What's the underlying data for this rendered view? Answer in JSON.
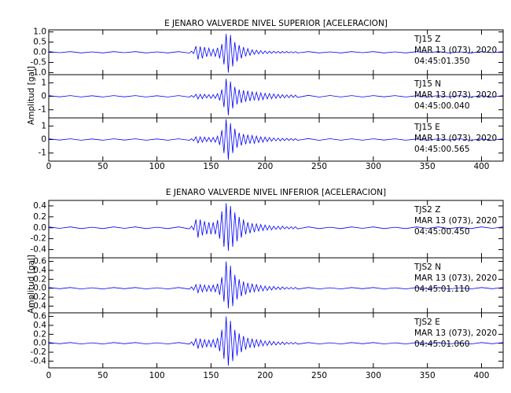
{
  "chart_data": [
    {
      "type": "line",
      "title": "E JENARO VALVERDE NIVEL SUPERIOR [ACELERACION]",
      "y_label": "Amplitud [gal]",
      "color": "#0000ff",
      "xlim": [
        0,
        420
      ],
      "xticks": [
        0,
        50,
        100,
        150,
        200,
        250,
        300,
        350,
        400
      ],
      "x": [
        0,
        10,
        20,
        30,
        40,
        50,
        60,
        70,
        80,
        90,
        100,
        110,
        120,
        130,
        132,
        134,
        136,
        138,
        140,
        142,
        144,
        146,
        148,
        150,
        152,
        154,
        156,
        158,
        160,
        162,
        164,
        166,
        168,
        170,
        172,
        174,
        176,
        178,
        180,
        182,
        184,
        186,
        188,
        190,
        192,
        194,
        196,
        198,
        200,
        202,
        204,
        206,
        208,
        210,
        212,
        214,
        216,
        218,
        220,
        222,
        224,
        226,
        228,
        230,
        240,
        250,
        260,
        270,
        280,
        290,
        300,
        310,
        320,
        330,
        340,
        350,
        360,
        370,
        380,
        390,
        400,
        410,
        420
      ],
      "panels": [
        {
          "annotations": [
            "TJ15   Z",
            "MAR 13 (073), 2020",
            "04:45:01.350"
          ],
          "ylim": [
            -1.1,
            1.1
          ],
          "yticks": [
            {
              "value": 1,
              "label": "1.0"
            },
            0.5,
            {
              "value": 0,
              "label": "0.0"
            },
            -0.5,
            {
              "value": -1,
              "label": "-1.0"
            }
          ],
          "values": [
            0.03,
            -0.02,
            0.03,
            -0.03,
            0.02,
            -0.03,
            0.03,
            -0.02,
            0.03,
            -0.03,
            0.02,
            -0.03,
            0.03,
            -0.04,
            0.05,
            -0.06,
            0.3,
            -0.35,
            0.28,
            -0.3,
            0.25,
            -0.22,
            0.2,
            -0.18,
            0.15,
            -0.2,
            0.22,
            -0.3,
            0.4,
            -0.6,
            0.9,
            -1.0,
            0.85,
            -0.7,
            0.5,
            -0.45,
            0.35,
            -0.3,
            0.25,
            -0.2,
            0.18,
            -0.15,
            0.12,
            -0.1,
            0.1,
            -0.08,
            0.08,
            -0.07,
            0.06,
            -0.06,
            0.05,
            -0.05,
            0.05,
            -0.04,
            0.04,
            -0.04,
            0.04,
            -0.03,
            0.04,
            -0.03,
            0.03,
            -0.03,
            0.03,
            -0.03,
            0.03,
            -0.03,
            0.02,
            -0.03,
            0.03,
            -0.02,
            0.03,
            -0.03,
            0.02,
            -0.03,
            0.03,
            -0.02,
            0.03,
            -0.03,
            0.02,
            -0.03,
            0.03,
            -0.02,
            0.03
          ]
        },
        {
          "annotations": [
            "TJ15   N",
            "MAR 13 (073), 2020",
            "04:45:00.040"
          ],
          "ylim": [
            -1.6,
            1.6
          ],
          "yticks": [
            1,
            0,
            -1
          ],
          "values": [
            0.05,
            -0.04,
            0.05,
            -0.05,
            0.04,
            -0.05,
            0.05,
            -0.04,
            0.05,
            -0.05,
            0.04,
            -0.05,
            0.05,
            -0.06,
            0.06,
            -0.08,
            0.15,
            -0.2,
            0.15,
            -0.18,
            0.15,
            -0.12,
            0.12,
            -0.15,
            0.12,
            -0.15,
            0.2,
            -0.3,
            0.5,
            -0.8,
            1.3,
            -1.4,
            1.1,
            -0.9,
            0.7,
            -0.6,
            0.5,
            -0.5,
            0.45,
            -0.4,
            0.4,
            -0.35,
            0.35,
            -0.3,
            0.3,
            -0.3,
            0.25,
            -0.25,
            0.22,
            -0.2,
            0.2,
            -0.18,
            0.18,
            -0.15,
            0.15,
            -0.13,
            0.12,
            -0.12,
            0.1,
            -0.1,
            0.1,
            -0.08,
            0.08,
            -0.08,
            0.07,
            -0.06,
            0.06,
            -0.05,
            0.05,
            -0.05,
            0.05,
            -0.04,
            0.05,
            -0.05,
            0.04,
            -0.05,
            0.05,
            -0.04,
            0.05,
            -0.05,
            0.04,
            -0.05,
            0.05
          ]
        },
        {
          "annotations": [
            "TJ15   E",
            "MAR 13 (073), 2020",
            "04:45:00.565"
          ],
          "ylim": [
            -1.6,
            1.6
          ],
          "yticks": [
            1,
            0,
            -1
          ],
          "values": [
            0.05,
            -0.04,
            0.05,
            -0.05,
            0.04,
            -0.05,
            0.05,
            -0.04,
            0.05,
            -0.05,
            0.04,
            -0.05,
            0.05,
            -0.06,
            0.06,
            -0.1,
            0.2,
            -0.25,
            0.2,
            -0.2,
            0.18,
            -0.15,
            0.15,
            -0.18,
            0.15,
            -0.2,
            0.25,
            -0.4,
            0.7,
            -1.0,
            1.5,
            -1.5,
            1.2,
            -1.0,
            0.8,
            -0.6,
            0.5,
            -0.45,
            0.4,
            -0.35,
            0.35,
            -0.3,
            0.3,
            -0.28,
            0.25,
            -0.22,
            0.2,
            -0.2,
            0.18,
            -0.15,
            0.15,
            -0.12,
            0.12,
            -0.1,
            0.1,
            -0.1,
            0.09,
            -0.08,
            0.08,
            -0.07,
            0.07,
            -0.06,
            0.06,
            -0.06,
            0.07,
            -0.06,
            0.06,
            -0.05,
            0.05,
            -0.05,
            0.05,
            -0.04,
            0.05,
            -0.05,
            0.04,
            -0.05,
            0.05,
            -0.04,
            0.05,
            -0.05,
            0.04,
            -0.05,
            0.05
          ]
        }
      ]
    },
    {
      "type": "line",
      "title": "E JENARO VALVERDE NIVEL INFERIOR [ACELERACION]",
      "y_label": "Amplitud [gal]",
      "color": "#0000ff",
      "xlim": [
        0,
        420
      ],
      "xticks": [
        0,
        50,
        100,
        150,
        200,
        250,
        300,
        350,
        400
      ],
      "x": [
        0,
        10,
        20,
        30,
        40,
        50,
        60,
        70,
        80,
        90,
        100,
        110,
        120,
        130,
        132,
        134,
        136,
        138,
        140,
        142,
        144,
        146,
        148,
        150,
        152,
        154,
        156,
        158,
        160,
        162,
        164,
        166,
        168,
        170,
        172,
        174,
        176,
        178,
        180,
        182,
        184,
        186,
        188,
        190,
        192,
        194,
        196,
        198,
        200,
        202,
        204,
        206,
        208,
        210,
        212,
        214,
        216,
        218,
        220,
        222,
        224,
        226,
        228,
        230,
        240,
        250,
        260,
        270,
        280,
        290,
        300,
        310,
        320,
        330,
        340,
        350,
        360,
        370,
        380,
        390,
        400,
        410,
        420
      ],
      "panels": [
        {
          "annotations": [
            "TJS2   Z",
            "MAR 13 (073), 2020",
            "04:45:00.450"
          ],
          "ylim": [
            -0.55,
            0.5
          ],
          "yticks": [
            0.4,
            0.2,
            {
              "value": 0,
              "label": "0.0"
            },
            -0.2,
            -0.4
          ],
          "values": [
            0.015,
            -0.01,
            0.015,
            -0.015,
            0.01,
            -0.015,
            0.015,
            -0.01,
            0.015,
            -0.015,
            0.01,
            -0.015,
            0.015,
            -0.02,
            0.03,
            -0.04,
            0.15,
            -0.18,
            0.15,
            -0.14,
            0.12,
            -0.12,
            0.1,
            -0.12,
            0.1,
            -0.12,
            0.14,
            -0.2,
            0.3,
            -0.35,
            0.45,
            -0.42,
            0.4,
            -0.35,
            0.28,
            -0.25,
            0.2,
            -0.18,
            0.15,
            -0.12,
            0.1,
            -0.1,
            0.08,
            -0.08,
            0.07,
            -0.06,
            0.06,
            -0.05,
            0.05,
            -0.04,
            0.04,
            -0.04,
            0.03,
            -0.03,
            0.03,
            -0.03,
            0.03,
            -0.02,
            0.02,
            -0.02,
            0.02,
            -0.02,
            0.02,
            -0.02,
            0.015,
            -0.015,
            0.01,
            -0.015,
            0.015,
            -0.01,
            0.015,
            -0.015,
            0.01,
            -0.015,
            0.015,
            -0.01,
            0.015,
            -0.015,
            0.01,
            -0.015,
            0.015,
            -0.01,
            0.015
          ]
        },
        {
          "annotations": [
            "TJS2   N",
            "MAR 13 (073), 2020",
            "04:45:01.110"
          ],
          "ylim": [
            -0.55,
            0.68
          ],
          "yticks": [
            0.6,
            0.4,
            0.2,
            {
              "value": 0,
              "label": "0.0"
            },
            -0.2,
            -0.4
          ],
          "values": [
            0.015,
            -0.01,
            0.015,
            -0.015,
            0.01,
            -0.015,
            0.015,
            -0.01,
            0.015,
            -0.015,
            0.01,
            -0.015,
            0.015,
            -0.02,
            0.03,
            -0.04,
            0.08,
            -0.1,
            0.08,
            -0.08,
            0.07,
            -0.07,
            0.06,
            -0.07,
            0.07,
            -0.08,
            0.1,
            -0.15,
            0.25,
            -0.3,
            0.6,
            -0.45,
            0.5,
            -0.4,
            0.3,
            -0.25,
            0.2,
            -0.18,
            0.15,
            -0.14,
            0.12,
            -0.1,
            0.1,
            -0.08,
            0.08,
            -0.07,
            0.06,
            -0.06,
            0.05,
            -0.05,
            0.04,
            -0.04,
            0.04,
            -0.03,
            0.03,
            -0.03,
            0.03,
            -0.02,
            0.02,
            -0.02,
            0.02,
            -0.02,
            0.02,
            -0.02,
            0.015,
            -0.015,
            0.01,
            -0.015,
            0.015,
            -0.01,
            0.015,
            -0.015,
            0.01,
            -0.015,
            0.015,
            -0.01,
            0.015,
            -0.015,
            0.01,
            -0.015,
            0.015,
            -0.01,
            0.015
          ]
        },
        {
          "annotations": [
            "TJS2   E",
            "MAR 13 (073), 2020",
            "04:45:01.060"
          ],
          "ylim": [
            -0.55,
            0.68
          ],
          "yticks": [
            0.6,
            0.4,
            0.2,
            {
              "value": 0,
              "label": "0.0"
            },
            -0.2,
            -0.4
          ],
          "values": [
            0.015,
            -0.01,
            0.015,
            -0.015,
            0.01,
            -0.015,
            0.015,
            -0.01,
            0.015,
            -0.015,
            0.01,
            -0.015,
            0.015,
            -0.02,
            0.03,
            -0.05,
            0.1,
            -0.12,
            0.1,
            -0.1,
            0.08,
            -0.08,
            0.07,
            -0.08,
            0.08,
            -0.1,
            0.12,
            -0.18,
            0.3,
            -0.35,
            0.6,
            -0.5,
            0.5,
            -0.4,
            0.3,
            -0.28,
            0.22,
            -0.2,
            0.16,
            -0.14,
            0.12,
            -0.1,
            0.1,
            -0.09,
            0.08,
            -0.07,
            0.07,
            -0.06,
            0.05,
            -0.05,
            0.05,
            -0.04,
            0.04,
            -0.04,
            0.03,
            -0.03,
            0.03,
            -0.03,
            0.02,
            -0.02,
            0.02,
            -0.02,
            0.02,
            -0.02,
            0.015,
            -0.015,
            0.01,
            -0.015,
            0.015,
            -0.01,
            0.015,
            -0.015,
            0.01,
            -0.015,
            0.015,
            -0.01,
            0.015,
            -0.015,
            0.01,
            -0.015,
            0.015,
            -0.01,
            0.015
          ]
        }
      ]
    }
  ]
}
